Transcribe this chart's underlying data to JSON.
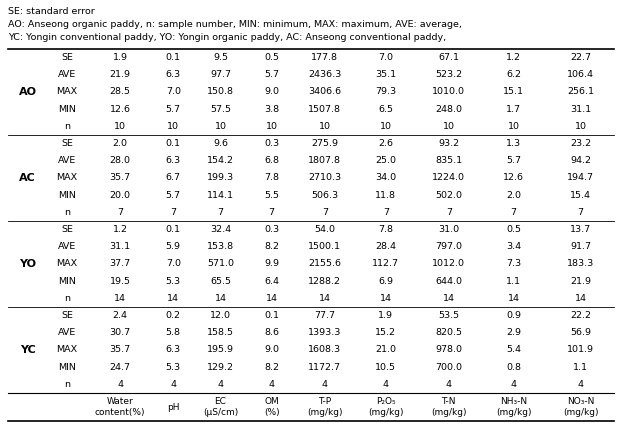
{
  "col_headers": [
    "Water\ncontent(%)",
    "pH",
    "EC\n(μS/cm)",
    "OM\n(%)",
    "T-P\n(mg/kg)",
    "P₂O₅\n(mg/kg)",
    "T-N\n(mg/kg)",
    "NH₃-N\n(mg/kg)",
    "NO₃-N\n(mg/kg)"
  ],
  "row_groups": [
    {
      "label": "YC",
      "rows": [
        [
          "n",
          "4",
          "4",
          "4",
          "4",
          "4",
          "4",
          "4",
          "4",
          "4"
        ],
        [
          "MIN",
          "24.7",
          "5.3",
          "129.2",
          "8.2",
          "1172.7",
          "10.5",
          "700.0",
          "0.8",
          "1.1"
        ],
        [
          "MAX",
          "35.7",
          "6.3",
          "195.9",
          "9.0",
          "1608.3",
          "21.0",
          "978.0",
          "5.4",
          "101.9"
        ],
        [
          "AVE",
          "30.7",
          "5.8",
          "158.5",
          "8.6",
          "1393.3",
          "15.2",
          "820.5",
          "2.9",
          "56.9"
        ],
        [
          "SE",
          "2.4",
          "0.2",
          "12.0",
          "0.1",
          "77.7",
          "1.9",
          "53.5",
          "0.9",
          "22.2"
        ]
      ]
    },
    {
      "label": "YO",
      "rows": [
        [
          "n",
          "14",
          "14",
          "14",
          "14",
          "14",
          "14",
          "14",
          "14",
          "14"
        ],
        [
          "MIN",
          "19.5",
          "5.3",
          "65.5",
          "6.4",
          "1288.2",
          "6.9",
          "644.0",
          "1.1",
          "21.9"
        ],
        [
          "MAX",
          "37.7",
          "7.0",
          "571.0",
          "9.9",
          "2155.6",
          "112.7",
          "1012.0",
          "7.3",
          "183.3"
        ],
        [
          "AVE",
          "31.1",
          "5.9",
          "153.8",
          "8.2",
          "1500.1",
          "28.4",
          "797.0",
          "3.4",
          "91.7"
        ],
        [
          "SE",
          "1.2",
          "0.1",
          "32.4",
          "0.3",
          "54.0",
          "7.8",
          "31.0",
          "0.5",
          "13.7"
        ]
      ]
    },
    {
      "label": "AC",
      "rows": [
        [
          "n",
          "7",
          "7",
          "7",
          "7",
          "7",
          "7",
          "7",
          "7",
          "7"
        ],
        [
          "MIN",
          "20.0",
          "5.7",
          "114.1",
          "5.5",
          "506.3",
          "11.8",
          "502.0",
          "2.0",
          "15.4"
        ],
        [
          "MAX",
          "35.7",
          "6.7",
          "199.3",
          "7.8",
          "2710.3",
          "34.0",
          "1224.0",
          "12.6",
          "194.7"
        ],
        [
          "AVE",
          "28.0",
          "6.3",
          "154.2",
          "6.8",
          "1807.8",
          "25.0",
          "835.1",
          "5.7",
          "94.2"
        ],
        [
          "SE",
          "2.0",
          "0.1",
          "9.6",
          "0.3",
          "275.9",
          "2.6",
          "93.2",
          "1.3",
          "23.2"
        ]
      ]
    },
    {
      "label": "AO",
      "rows": [
        [
          "n",
          "10",
          "10",
          "10",
          "10",
          "10",
          "10",
          "10",
          "10",
          "10"
        ],
        [
          "MIN",
          "12.6",
          "5.7",
          "57.5",
          "3.8",
          "1507.8",
          "6.5",
          "248.0",
          "1.7",
          "31.1"
        ],
        [
          "MAX",
          "28.5",
          "7.0",
          "150.8",
          "9.0",
          "3406.6",
          "79.3",
          "1010.0",
          "15.1",
          "256.1"
        ],
        [
          "AVE",
          "21.9",
          "6.3",
          "97.7",
          "5.7",
          "2436.3",
          "35.1",
          "523.2",
          "6.2",
          "106.4"
        ],
        [
          "SE",
          "1.9",
          "0.1",
          "9.5",
          "0.5",
          "177.8",
          "7.0",
          "67.1",
          "1.2",
          "22.7"
        ]
      ]
    }
  ],
  "footnote_lines": [
    "YC: Yongin conventional paddy, YO: Yongin organic paddy, AC: Anseong conventional paddy,",
    "AO: Anseong organic paddy, n: sample number, MIN: minimum, MAX: maximum, AVE: average,",
    "SE: standard error"
  ]
}
